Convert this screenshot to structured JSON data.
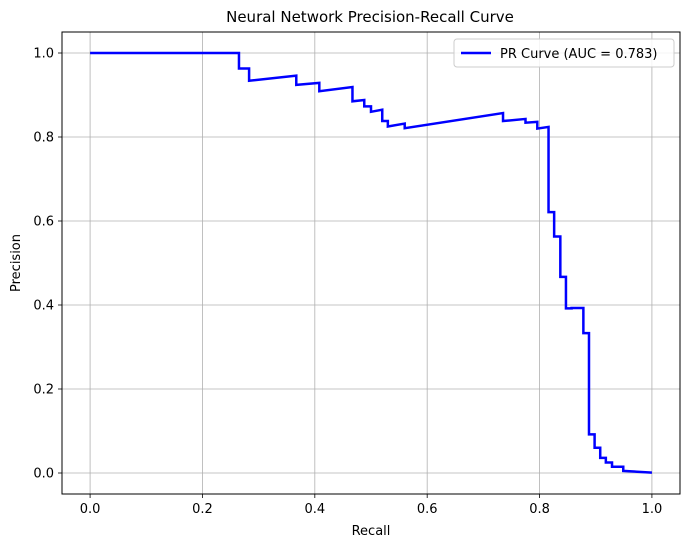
{
  "chart_data": {
    "type": "line",
    "title": "Neural Network Precision-Recall Curve",
    "xlabel": "Recall",
    "ylabel": "Precision",
    "xlim": [
      -0.05,
      1.05
    ],
    "ylim": [
      -0.05,
      1.05
    ],
    "grid": true,
    "legend_placement": "top-right",
    "xticks": [
      0.0,
      0.2,
      0.4,
      0.6,
      0.8,
      1.0
    ],
    "yticks": [
      0.0,
      0.2,
      0.4,
      0.6,
      0.8,
      1.0
    ],
    "xtick_labels": [
      "0.0",
      "0.2",
      "0.4",
      "0.6",
      "0.8",
      "1.0"
    ],
    "ytick_labels": [
      "0.0",
      "0.2",
      "0.4",
      "0.6",
      "0.8",
      "1.0"
    ],
    "series": [
      {
        "name": "PR Curve (AUC = 0.783)",
        "color": "#0000ff",
        "x": [
          0.0,
          0.265,
          0.265,
          0.283,
          0.283,
          0.367,
          0.367,
          0.408,
          0.408,
          0.467,
          0.467,
          0.488,
          0.488,
          0.5,
          0.5,
          0.52,
          0.52,
          0.53,
          0.53,
          0.56,
          0.56,
          0.735,
          0.735,
          0.775,
          0.775,
          0.796,
          0.796,
          0.816,
          0.816,
          0.826,
          0.826,
          0.837,
          0.837,
          0.847,
          0.847,
          0.857,
          0.857,
          0.878,
          0.878,
          0.888,
          0.888,
          0.898,
          0.898,
          0.908,
          0.908,
          0.918,
          0.918,
          0.929,
          0.929,
          0.949,
          0.949,
          1.0
        ],
        "y": [
          1.0,
          1.0,
          0.963,
          0.963,
          0.934,
          0.946,
          0.924,
          0.929,
          0.909,
          0.919,
          0.885,
          0.888,
          0.873,
          0.873,
          0.86,
          0.865,
          0.838,
          0.838,
          0.825,
          0.832,
          0.821,
          0.857,
          0.838,
          0.843,
          0.834,
          0.836,
          0.82,
          0.824,
          0.621,
          0.621,
          0.563,
          0.563,
          0.467,
          0.467,
          0.392,
          0.392,
          0.393,
          0.393,
          0.333,
          0.333,
          0.092,
          0.092,
          0.06,
          0.06,
          0.036,
          0.036,
          0.025,
          0.025,
          0.015,
          0.015,
          0.005,
          0.001
        ]
      }
    ]
  }
}
